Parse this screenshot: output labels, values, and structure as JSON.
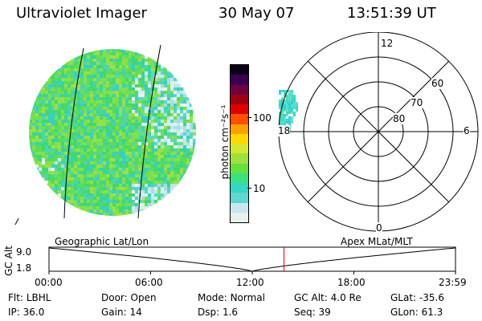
{
  "header": {
    "instrument": "Ultraviolet Imager",
    "date": "30 May 07",
    "time": "13:51:39 UT"
  },
  "colorbar": {
    "label": "photon cm⁻²s⁻¹",
    "ticks": [
      "100",
      "10"
    ],
    "scale": "log",
    "colors": [
      "#e8f0f0",
      "#c6e8ec",
      "#5fd6d0",
      "#35d6c4",
      "#3ee080",
      "#64e040",
      "#a0e03c",
      "#d4e830",
      "#ffd800",
      "#ffa000",
      "#ff5000",
      "#e00000",
      "#a00010",
      "#700040",
      "#3c0050",
      "#0c0018"
    ]
  },
  "polar_plot": {
    "mlt_labels": [
      "12",
      "18",
      "6",
      "0"
    ],
    "mlat_labels": [
      "60",
      "70",
      "80"
    ]
  },
  "timeline": {
    "y_axis_label": "GC Alt",
    "y_ticks": [
      "9.0",
      "1.8"
    ],
    "left_caption": "Geographic Lat/Lon",
    "right_caption": "Apex MLat/MLT",
    "x_ticks": [
      "00:00",
      "06:00",
      "12:00",
      "18:00",
      "23:59"
    ],
    "current_time_fraction": 0.578
  },
  "info": {
    "flt_label": "Flt:",
    "flt_value": "LBHL",
    "door_label": "Door:",
    "door_value": "Open",
    "mode_label": "Mode:",
    "mode_value": "Normal",
    "gcalt_label": "GC Alt:",
    "gcalt_value": "4.0 Re",
    "glat_label": "GLat:",
    "glat_value": "-35.6",
    "ip_label": "IP:",
    "ip_value": "36.0",
    "gain_label": "Gain:",
    "gain_value": "14",
    "dsp_label": "Dsp:",
    "dsp_value": "1.6",
    "seq_label": "Seq:",
    "seq_value": "39",
    "glon_label": "GLon:",
    "glon_value": "61.3"
  }
}
